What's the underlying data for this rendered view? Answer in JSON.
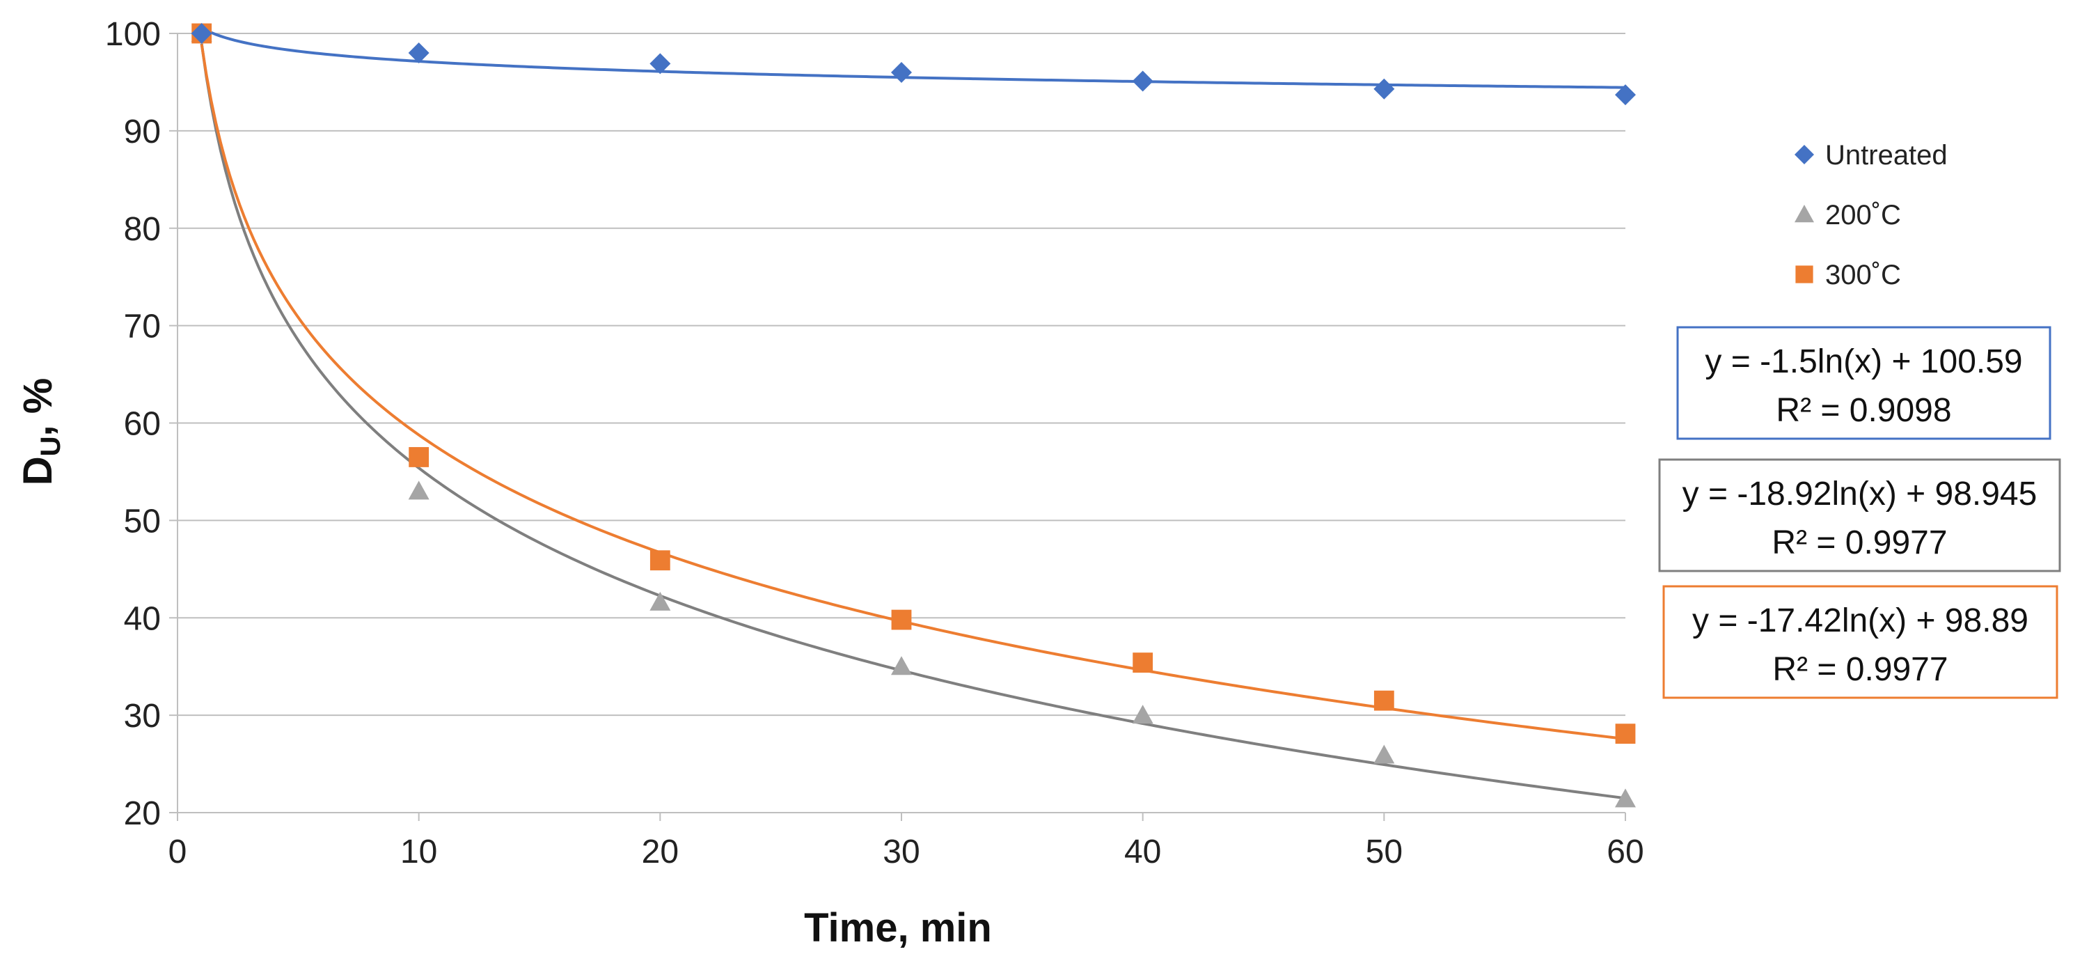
{
  "chart_data": {
    "type": "scatter",
    "title": "",
    "xlabel": "Time, min",
    "ylabel_main": "D",
    "ylabel_sub": "U",
    "ylabel_suffix": ", %",
    "xlim": [
      0,
      60
    ],
    "ylim": [
      20,
      100
    ],
    "xticks": [
      0,
      10,
      20,
      30,
      40,
      50,
      60
    ],
    "yticks": [
      20,
      30,
      40,
      50,
      60,
      70,
      80,
      90,
      100
    ],
    "grid": "horizontal",
    "legend_position": "right",
    "x": [
      1,
      10,
      20,
      30,
      40,
      50,
      60
    ],
    "series": [
      {
        "name": "Untreated",
        "marker": "diamond",
        "color": "#4472C4",
        "values": [
          100,
          98,
          96.9,
          96,
          95.1,
          94.3,
          93.7
        ],
        "trendline": {
          "type": "logarithmic",
          "a": -1.5,
          "b": 100.59,
          "equation": "y = -1.5ln(x) + 100.59",
          "r2": "R² = 0.9098"
        }
      },
      {
        "name": "200˚C",
        "marker": "triangle",
        "color": "#A5A5A5",
        "trend_color": "#7F7F7F",
        "values": [
          100,
          53,
          41.6,
          35,
          30,
          25.9,
          21.4
        ],
        "trendline": {
          "type": "logarithmic",
          "a": -18.92,
          "b": 98.945,
          "equation": "y = -18.92ln(x) + 98.945",
          "r2": "R² = 0.9977"
        }
      },
      {
        "name": "300˚C",
        "marker": "square",
        "color": "#ED7D31",
        "values": [
          100,
          56.5,
          45.9,
          39.8,
          35.4,
          31.5,
          28.1
        ],
        "trendline": {
          "type": "logarithmic",
          "a": -17.42,
          "b": 98.89,
          "equation": "y = -17.42ln(x) + 98.89",
          "r2": "R² = 0.9977"
        }
      }
    ]
  }
}
